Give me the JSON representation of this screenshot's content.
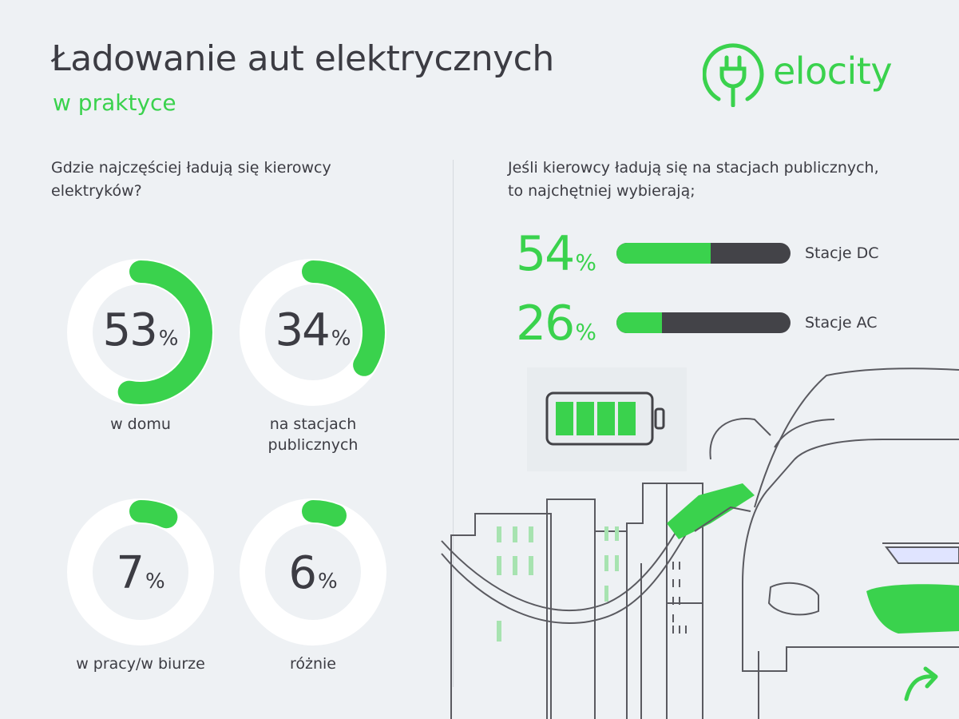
{
  "header": {
    "title": "Ładowanie aut elektrycznych",
    "subtitle": "w praktyce",
    "logo_text": "elocity"
  },
  "colors": {
    "accent": "#3ad24d",
    "dark": "#434348",
    "text": "#3c3c43",
    "background": "#eef1f4"
  },
  "left_panel": {
    "question": "Gdzie najczęściej ładują się kierowcy elektryków?"
  },
  "right_panel": {
    "question": "Jeśli kierowcy ładują się na stacjach publicznych, to najchętniej wybierają;"
  },
  "chart_data": [
    {
      "type": "donut",
      "unit": "%",
      "categories": [
        "w domu",
        "na stacjach publicznych",
        "w pracy/w biurze",
        "różnie"
      ],
      "values": [
        53,
        34,
        7,
        6
      ]
    },
    {
      "type": "bar",
      "orientation": "horizontal",
      "unit": "%",
      "categories": [
        "Stacje DC",
        "Stacje AC"
      ],
      "values": [
        54,
        26
      ],
      "xlim": [
        0,
        100
      ]
    }
  ],
  "icons": [
    "plug-icon",
    "battery-icon",
    "car-illustration",
    "city-skyline-illustration",
    "arrow-icon"
  ]
}
